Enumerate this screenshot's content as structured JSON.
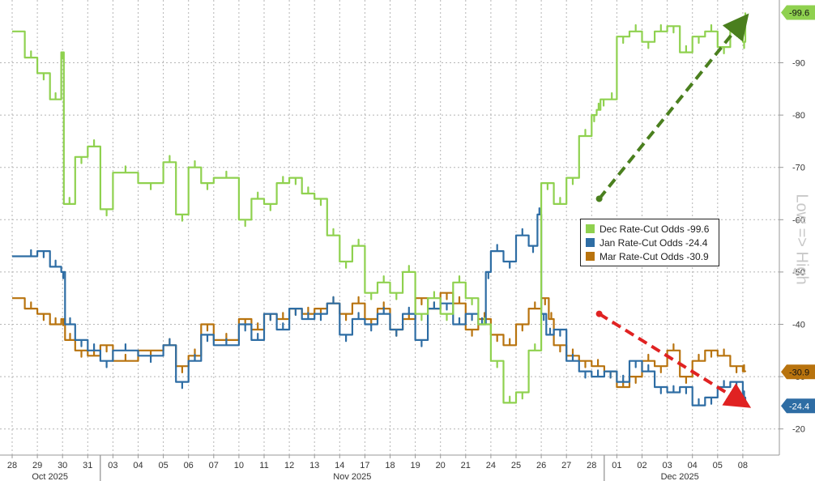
{
  "chart_data": {
    "type": "line",
    "ylabel": "Low => High",
    "ylim": [
      15,
      102
    ],
    "yticks": [
      20,
      30,
      40,
      50,
      60,
      70,
      80,
      90
    ],
    "x_day_labels": [
      "28",
      "29",
      "30",
      "31",
      "03",
      "04",
      "05",
      "06",
      "07",
      "10",
      "11",
      "12",
      "13",
      "14",
      "17",
      "18",
      "19",
      "20",
      "21",
      "24",
      "25",
      "26",
      "27",
      "28",
      "01",
      "02",
      "03",
      "04",
      "05",
      "08"
    ],
    "x_month_labels": [
      {
        "label": "Oct 2025",
        "start": 0,
        "end": 3
      },
      {
        "label": "Nov 2025",
        "start": 4,
        "end": 23
      },
      {
        "label": "Dec 2025",
        "start": 24,
        "end": 29
      }
    ],
    "colors": {
      "dec": "#8fd14f",
      "jan": "#2e6da4",
      "mar": "#b8730e",
      "grid": "#b5b5b5",
      "axis": "#999999"
    },
    "series": [
      {
        "key": "dec",
        "name": "Dec Rate-Cut Odds",
        "last": "99.6",
        "legend": "Dec Rate-Cut Odds -99.6",
        "x": [
          0,
          0.5,
          1.0,
          1.5,
          1.95,
          2.05,
          2.5,
          3.0,
          3.5,
          4,
          5,
          6,
          6.5,
          7,
          7.5,
          8,
          9,
          9.5,
          10,
          10.5,
          11,
          11.5,
          12,
          12.5,
          13,
          13.5,
          14,
          14.5,
          15,
          15.5,
          16,
          16.5,
          17,
          17.5,
          18,
          18.5,
          19,
          19.5,
          20,
          20.5,
          21,
          21.5,
          22,
          22.5,
          23,
          23.2,
          23.35,
          23.6,
          24,
          24.5,
          25,
          25.5,
          26,
          26.5,
          27,
          27.5,
          28,
          28.5,
          29,
          29.1
        ],
        "y": [
          96,
          91,
          88,
          83,
          92,
          63,
          72,
          74,
          62,
          69,
          67,
          71,
          61,
          70,
          67,
          68,
          60,
          64,
          63,
          67,
          68,
          65,
          64,
          57,
          52,
          55,
          46,
          48,
          46,
          50,
          42,
          45,
          42,
          48,
          45,
          40,
          33,
          25,
          27,
          35,
          67,
          63,
          68,
          76,
          80,
          81,
          83,
          83,
          95,
          96,
          94,
          96,
          97,
          92,
          95,
          96,
          93,
          96,
          94,
          99.6
        ]
      },
      {
        "key": "jan",
        "name": "Jan Rate-Cut Odds",
        "last": "24.4",
        "legend": "Jan Rate-Cut Odds -24.4",
        "x": [
          0,
          0.5,
          1.0,
          1.5,
          1.95,
          2.1,
          2.5,
          3.0,
          3.5,
          4,
          5,
          6,
          6.5,
          7,
          7.5,
          8,
          9,
          9.5,
          10,
          10.5,
          11,
          11.5,
          12,
          12.5,
          13,
          13.5,
          14,
          14.5,
          15,
          15.5,
          16,
          16.5,
          17,
          17.5,
          18,
          18.5,
          18.8,
          19,
          19.5,
          20,
          20.5,
          20.85,
          21.0,
          21.2,
          21.5,
          22,
          22.5,
          23,
          23.5,
          24,
          24.5,
          25,
          25.5,
          26,
          26.5,
          27,
          27.5,
          28,
          28.5,
          29,
          29.1
        ],
        "y": [
          53,
          53,
          54,
          51,
          50,
          40,
          37,
          35,
          33,
          35,
          34,
          36,
          29,
          33,
          38,
          36,
          40,
          37,
          42,
          39,
          43,
          41,
          42,
          44,
          38,
          41,
          40,
          42,
          39,
          42,
          37,
          43,
          44,
          40,
          42,
          40,
          50,
          54,
          52,
          57,
          55,
          61,
          42,
          38,
          39,
          33,
          31,
          30,
          31,
          29,
          33,
          31,
          28,
          27,
          28,
          24.5,
          26,
          28,
          29,
          26,
          24.4
        ]
      },
      {
        "key": "mar",
        "name": "Mar Rate-Cut Odds",
        "last": "30.9",
        "legend": "Mar Rate-Cut Odds -30.9",
        "x": [
          0,
          0.5,
          1.0,
          1.5,
          1.95,
          2.1,
          2.5,
          3.0,
          3.5,
          4,
          5,
          6,
          6.5,
          7,
          7.5,
          8,
          9,
          9.5,
          10,
          10.5,
          11,
          11.5,
          12,
          12.5,
          13,
          13.5,
          14,
          14.5,
          15,
          15.5,
          16,
          16.5,
          17,
          17.5,
          18,
          18.5,
          19,
          19.5,
          20,
          20.5,
          21,
          21.3,
          21.5,
          22,
          22.5,
          23,
          23.5,
          24,
          24.5,
          25,
          25.5,
          26,
          26.5,
          27,
          27.5,
          28,
          28.5,
          29,
          29.1
        ],
        "y": [
          45,
          43,
          42,
          40,
          41,
          37,
          35,
          34,
          36,
          33,
          35,
          36,
          32,
          34,
          40,
          37,
          41,
          39,
          42,
          41,
          43,
          42,
          43,
          44,
          42,
          44,
          41,
          43,
          39,
          41,
          45,
          43,
          46,
          44,
          39,
          41,
          38,
          36,
          40,
          43,
          45,
          41,
          36,
          34,
          33,
          32,
          31,
          28,
          30,
          33,
          32,
          35,
          30,
          33,
          35,
          34,
          32,
          31,
          30.9
        ]
      }
    ],
    "arrows": [
      {
        "from": [
          23.3,
          64
        ],
        "to": [
          29.0,
          98
        ],
        "color": "#4a7f1e"
      },
      {
        "from": [
          23.3,
          42
        ],
        "to": [
          29.0,
          25
        ],
        "color": "#e02222"
      }
    ]
  }
}
